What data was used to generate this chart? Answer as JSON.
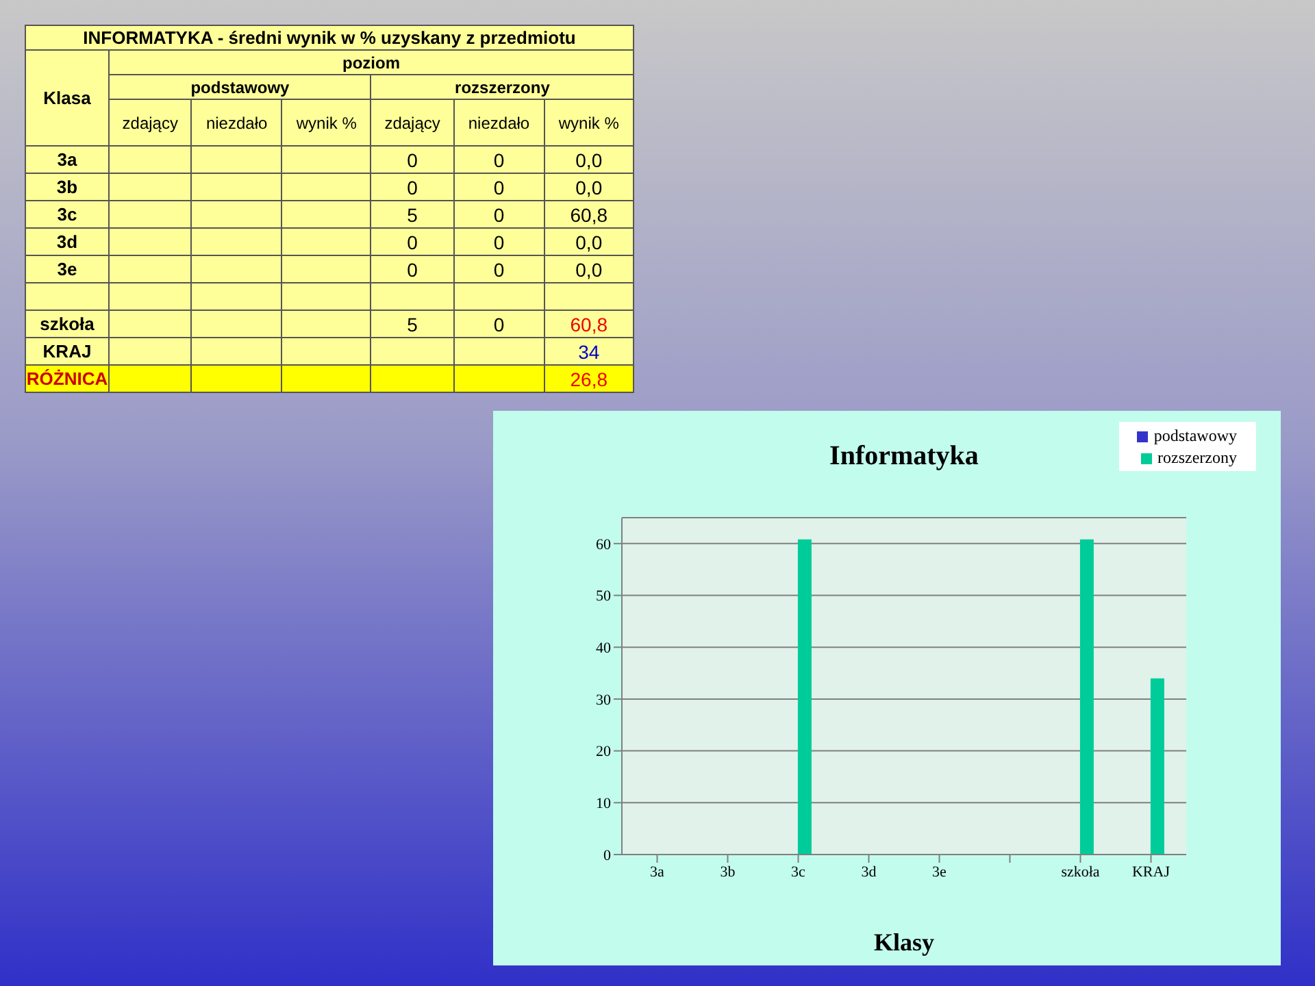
{
  "chart_data": [
    {
      "type": "other",
      "title": "INFORMATYKA  - średni wynik w % uzyskany z przedmiotu",
      "annotations": [
        "Klasa",
        "poziom",
        "podstawowy",
        "rozszerzony"
      ],
      "categories": [
        "zdający",
        "niezdało",
        "wynik %",
        "zdający",
        "niezdało",
        "wynik %"
      ],
      "y_categories": [
        "3a",
        "3b",
        "3c",
        "3d",
        "3e",
        null,
        "szkoła",
        "KRAJ",
        "RÓŻNICA"
      ],
      "cell_labels": [
        [
          null,
          null,
          null,
          "0",
          "0",
          "0,0"
        ],
        [
          null,
          null,
          null,
          "0",
          "0",
          "0,0"
        ],
        [
          null,
          null,
          null,
          "5",
          "0",
          "60,8"
        ],
        [
          null,
          null,
          null,
          "0",
          "0",
          "0,0"
        ],
        [
          null,
          null,
          null,
          "0",
          "0",
          "0,0"
        ],
        [
          null,
          null,
          null,
          null,
          null,
          null
        ],
        [
          null,
          null,
          null,
          "5",
          "0",
          "60,8"
        ],
        [
          null,
          null,
          null,
          null,
          null,
          "34"
        ],
        [
          null,
          null,
          null,
          null,
          null,
          "26,8"
        ]
      ]
    },
    {
      "type": "bar",
      "title": "Informatyka",
      "xlabel": "Klasy",
      "categories": [
        "3a",
        "3b",
        "3c",
        "3d",
        "3e",
        null,
        "szkoła",
        "KRAJ"
      ],
      "series": [
        {
          "name": "podstawowy",
          "color": "#3333cc",
          "values": [
            null,
            null,
            null,
            null,
            null,
            null,
            null,
            null
          ]
        },
        {
          "name": "rozszerzony",
          "color": "#00cc99",
          "values": [
            0,
            0,
            60.8,
            0,
            0,
            null,
            60.8,
            34
          ]
        }
      ],
      "ylim": [
        0,
        65
      ],
      "yticks": [
        0,
        10,
        20,
        30,
        40,
        50,
        60
      ],
      "grid": "y",
      "legend": "top right"
    }
  ]
}
